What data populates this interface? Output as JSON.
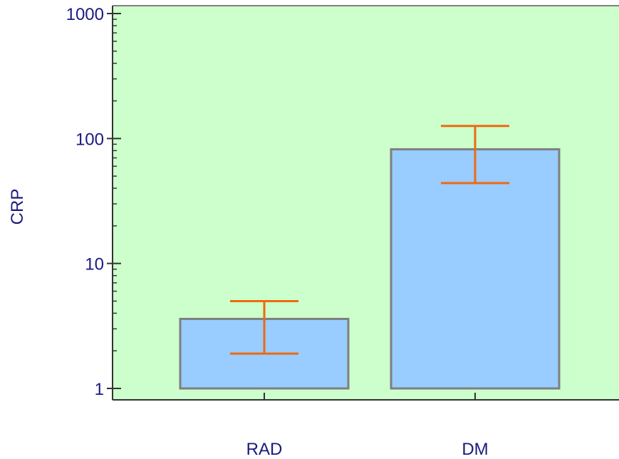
{
  "chart_data": {
    "type": "bar",
    "scale": "log",
    "ylabel": "CRP",
    "xlabel": "",
    "ylim": [
      1,
      1000
    ],
    "yticks": [
      {
        "value": 1,
        "label": "1"
      },
      {
        "value": 10,
        "label": "10"
      },
      {
        "value": 100,
        "label": "100"
      },
      {
        "value": 1000,
        "label": "1000"
      }
    ],
    "categories": [
      "RAD",
      "DM"
    ],
    "values": [
      3.6,
      82
    ],
    "error_low": [
      1.9,
      44
    ],
    "error_high": [
      5.0,
      126
    ],
    "grid": false,
    "colors": {
      "background": "#ffffff",
      "plot_area": "#ccffcc",
      "bar_fill": "#99ccff",
      "bar_stroke": "#7f7f7f",
      "error_bar": "#ee6a10",
      "axis": "#333333",
      "text": "#1a1a80"
    }
  }
}
